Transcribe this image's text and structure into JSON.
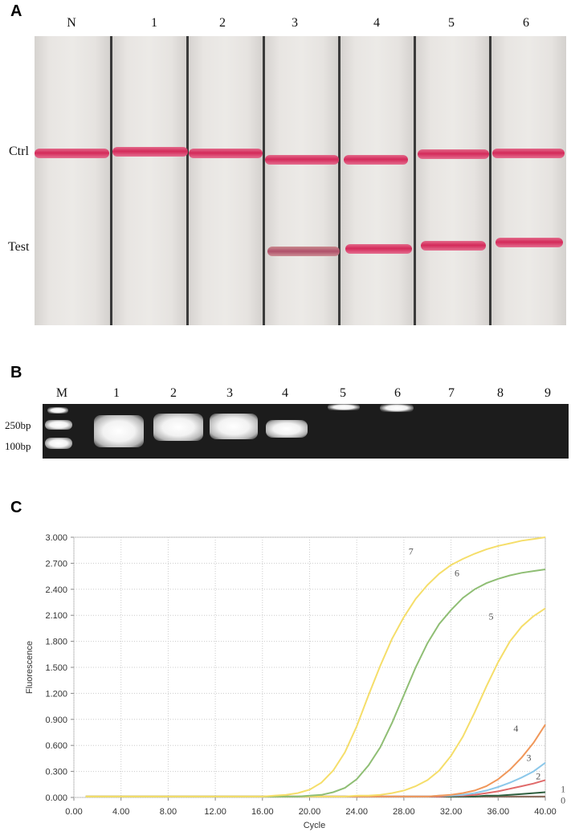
{
  "panelA": {
    "letter": "A",
    "lanes": [
      "N",
      "1",
      "2",
      "3",
      "4",
      "5",
      "6"
    ],
    "rows": {
      "ctrl": "Ctrl",
      "test": "Test"
    }
  },
  "panelB": {
    "letter": "B",
    "lanes": [
      "M",
      "1",
      "2",
      "3",
      "4",
      "5",
      "6",
      "7",
      "8",
      "9"
    ],
    "markers": [
      "250bp",
      "100bp"
    ]
  },
  "panelC": {
    "letter": "C"
  },
  "chart_data": {
    "type": "line",
    "xlabel": "Cycle",
    "ylabel": "Fluorescence",
    "xlim": [
      0,
      40
    ],
    "ylim": [
      0,
      3.0
    ],
    "xticks": [
      "0.00",
      "4.00",
      "8.00",
      "12.00",
      "16.00",
      "20.00",
      "24.00",
      "28.00",
      "32.00",
      "36.00",
      "40.00"
    ],
    "yticks": [
      "0.000",
      "0.300",
      "0.600",
      "0.900",
      "1.200",
      "1.500",
      "1.800",
      "2.100",
      "2.400",
      "2.700",
      "3.000"
    ],
    "grid": true,
    "x": [
      1,
      2,
      3,
      4,
      5,
      6,
      7,
      8,
      9,
      10,
      11,
      12,
      13,
      14,
      15,
      16,
      17,
      18,
      19,
      20,
      21,
      22,
      23,
      24,
      25,
      26,
      27,
      28,
      29,
      30,
      31,
      32,
      33,
      34,
      35,
      36,
      37,
      38,
      39,
      40
    ],
    "series": [
      {
        "name": "0",
        "color": "#8a6a5a",
        "values": [
          0.01,
          0.01,
          0.01,
          0.01,
          0.01,
          0.01,
          0.01,
          0.01,
          0.01,
          0.01,
          0.01,
          0.01,
          0.01,
          0.01,
          0.01,
          0.01,
          0.01,
          0.01,
          0.01,
          0.01,
          0.01,
          0.01,
          0.01,
          0.01,
          0.01,
          0.01,
          0.01,
          0.01,
          0.01,
          0.01,
          0.01,
          0.01,
          0.01,
          0.01,
          0.01,
          0.01,
          0.01,
          0.01,
          0.01,
          0.01
        ]
      },
      {
        "name": "1",
        "color": "#2e5e3e",
        "values": [
          0.01,
          0.01,
          0.01,
          0.01,
          0.01,
          0.01,
          0.01,
          0.01,
          0.01,
          0.01,
          0.01,
          0.01,
          0.01,
          0.01,
          0.01,
          0.01,
          0.01,
          0.01,
          0.01,
          0.01,
          0.01,
          0.01,
          0.01,
          0.01,
          0.01,
          0.01,
          0.01,
          0.01,
          0.01,
          0.01,
          0.01,
          0.01,
          0.01,
          0.01,
          0.02,
          0.02,
          0.03,
          0.04,
          0.05,
          0.06
        ]
      },
      {
        "name": "2",
        "color": "#e06a6a",
        "values": [
          0.01,
          0.01,
          0.01,
          0.01,
          0.01,
          0.01,
          0.01,
          0.01,
          0.01,
          0.01,
          0.01,
          0.01,
          0.01,
          0.01,
          0.01,
          0.01,
          0.01,
          0.01,
          0.01,
          0.01,
          0.01,
          0.01,
          0.01,
          0.01,
          0.01,
          0.01,
          0.01,
          0.01,
          0.01,
          0.01,
          0.01,
          0.02,
          0.02,
          0.03,
          0.05,
          0.07,
          0.1,
          0.13,
          0.16,
          0.2
        ]
      },
      {
        "name": "3",
        "color": "#8cc8ea",
        "values": [
          0.01,
          0.01,
          0.01,
          0.01,
          0.01,
          0.01,
          0.01,
          0.01,
          0.01,
          0.01,
          0.01,
          0.01,
          0.01,
          0.01,
          0.01,
          0.01,
          0.01,
          0.01,
          0.01,
          0.01,
          0.01,
          0.01,
          0.01,
          0.01,
          0.01,
          0.01,
          0.01,
          0.01,
          0.01,
          0.01,
          0.02,
          0.02,
          0.03,
          0.05,
          0.08,
          0.12,
          0.17,
          0.23,
          0.3,
          0.4
        ]
      },
      {
        "name": "4",
        "color": "#f0975a",
        "values": [
          0.01,
          0.01,
          0.01,
          0.01,
          0.01,
          0.01,
          0.01,
          0.01,
          0.01,
          0.01,
          0.01,
          0.01,
          0.01,
          0.01,
          0.01,
          0.01,
          0.01,
          0.01,
          0.01,
          0.01,
          0.01,
          0.01,
          0.01,
          0.01,
          0.01,
          0.01,
          0.01,
          0.01,
          0.01,
          0.01,
          0.02,
          0.03,
          0.05,
          0.08,
          0.13,
          0.21,
          0.32,
          0.46,
          0.63,
          0.84
        ]
      },
      {
        "name": "5",
        "color": "#f5de6a",
        "values": [
          0.01,
          0.01,
          0.01,
          0.01,
          0.01,
          0.01,
          0.01,
          0.01,
          0.01,
          0.01,
          0.01,
          0.01,
          0.01,
          0.01,
          0.01,
          0.01,
          0.01,
          0.01,
          0.01,
          0.01,
          0.01,
          0.01,
          0.01,
          0.02,
          0.02,
          0.03,
          0.05,
          0.08,
          0.13,
          0.2,
          0.31,
          0.48,
          0.7,
          0.98,
          1.28,
          1.56,
          1.8,
          1.97,
          2.09,
          2.18
        ]
      },
      {
        "name": "6",
        "color": "#8fbe74",
        "values": [
          0.01,
          0.01,
          0.01,
          0.01,
          0.01,
          0.01,
          0.01,
          0.01,
          0.01,
          0.01,
          0.01,
          0.01,
          0.01,
          0.01,
          0.01,
          0.01,
          0.01,
          0.01,
          0.01,
          0.02,
          0.03,
          0.06,
          0.11,
          0.21,
          0.37,
          0.58,
          0.86,
          1.18,
          1.5,
          1.78,
          2.0,
          2.16,
          2.3,
          2.4,
          2.47,
          2.52,
          2.56,
          2.59,
          2.61,
          2.63
        ]
      },
      {
        "name": "7",
        "color": "#f5de6a",
        "values": [
          0.01,
          0.01,
          0.01,
          0.01,
          0.01,
          0.01,
          0.01,
          0.01,
          0.01,
          0.01,
          0.01,
          0.01,
          0.01,
          0.01,
          0.01,
          0.01,
          0.02,
          0.03,
          0.05,
          0.09,
          0.17,
          0.31,
          0.52,
          0.82,
          1.18,
          1.52,
          1.83,
          2.08,
          2.29,
          2.45,
          2.58,
          2.68,
          2.75,
          2.81,
          2.86,
          2.9,
          2.93,
          2.96,
          2.98,
          3.0
        ]
      }
    ]
  }
}
